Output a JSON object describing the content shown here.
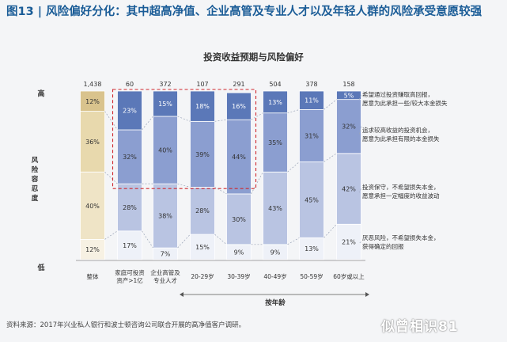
{
  "header": {
    "title": "图13 | 风险偏好分化：其中超高净值、企业高管及专业人才以及年轻人群的风险承受意愿较强"
  },
  "footer": {
    "source": "资料来源：2017年兴业私人银行和波士顿咨询公司联合开展的高净值客户调研。",
    "watermark": "似曾相识81"
  },
  "chart_data": {
    "type": "bar",
    "stacked": true,
    "title": "投资收益预期与风险偏好",
    "xlabel": "按年龄",
    "ylabel": "风险容忍度",
    "y_top_label": "高",
    "y_bottom_label": "低",
    "categories": [
      {
        "label": "整体",
        "n": "1,438"
      },
      {
        "label": "家庭可投资资产>1亿",
        "n": "60"
      },
      {
        "label": "企业高管及专业人才",
        "n": "372"
      },
      {
        "label": "20-29岁",
        "n": "107"
      },
      {
        "label": "30-39岁",
        "n": "291"
      },
      {
        "label": "40-49岁",
        "n": "504"
      },
      {
        "label": "50-59岁",
        "n": "378"
      },
      {
        "label": "60岁或以上",
        "n": "158"
      }
    ],
    "series": [
      {
        "name": "厌恶风险，不希望损失本金，获得确定的回报",
        "values": [
          12,
          17,
          7,
          15,
          9,
          9,
          13,
          21
        ],
        "labels": [
          "12%",
          "17%",
          "7%",
          "15%",
          "9%",
          "9%",
          "13%",
          "21%"
        ]
      },
      {
        "name": "投资保守，不希望损失本金，愿意承担一定幅度的收益波动",
        "values": [
          40,
          28,
          38,
          28,
          30,
          43,
          45,
          42
        ],
        "labels": [
          "40%",
          "28%",
          "38%",
          "28%",
          "30%",
          "43%",
          "45%",
          "42%"
        ]
      },
      {
        "name": "追求较高收益的投资机会，愿意为此承担有限的本金损失",
        "values": [
          36,
          32,
          40,
          39,
          44,
          35,
          31,
          32
        ],
        "labels": [
          "36%",
          "32%",
          "40%",
          "39%",
          "44%",
          "35%",
          "31%",
          "32%"
        ]
      },
      {
        "name": "希望通过投资赚取高回报，愿意为此承担一些/较大本金损失",
        "values": [
          12,
          23,
          15,
          18,
          16,
          13,
          11,
          5
        ],
        "labels": [
          "12%",
          "23%",
          "15%",
          "18%",
          "16%",
          "13%",
          "11%",
          "5%"
        ]
      }
    ],
    "legend_lines": [
      [
        "希望通过投资赚取高回报，",
        "愿意为此承担一些/较大本金损失"
      ],
      [
        "追求较高收益的投资机会，",
        "愿意为此承担有限的本金损失"
      ],
      [
        "投资保守，不希望损失本金，",
        "愿意承担一定幅度的收益波动"
      ],
      [
        "厌恶风险，不希望损失本金，",
        "获得确定的回报"
      ]
    ],
    "colors": {
      "overall": [
        "#f7f1e3",
        "#efe4c6",
        "#e8d9ad",
        "#d9c38d"
      ],
      "groups": [
        "#eef1f8",
        "#b9c4e2",
        "#8b9ed0",
        "#5b78b8"
      ],
      "highlight_box": "#d0262c"
    },
    "ylim": [
      0,
      100
    ],
    "legend": "right"
  }
}
